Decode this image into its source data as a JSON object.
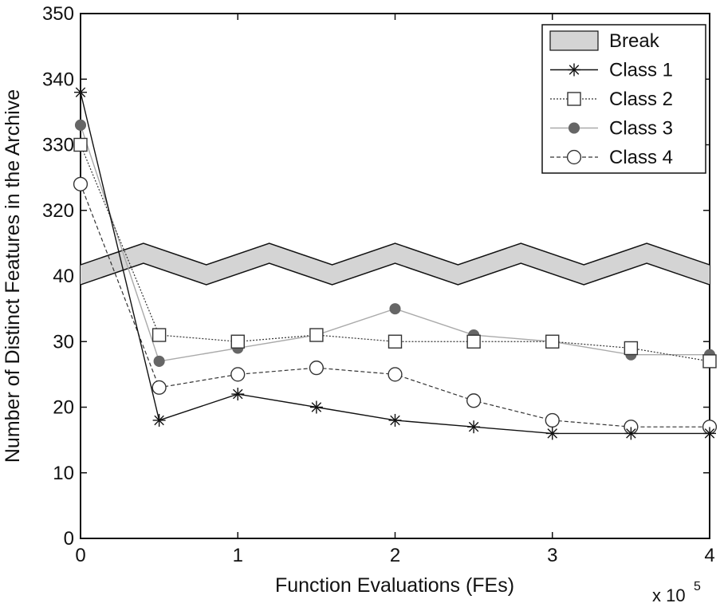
{
  "chart_data": {
    "type": "line",
    "xlabel": "Function Evaluations (FEs)",
    "ylabel": "Number of Distinct Features in the Archive",
    "x_scale_label": "x 10",
    "x_scale_exponent": "5",
    "xlim": [
      0,
      4
    ],
    "x_ticks": [
      "0",
      "1",
      "2",
      "3",
      "4"
    ],
    "y_axis": {
      "broken": true,
      "lower_range": [
        0,
        40
      ],
      "upper_range": [
        310,
        350
      ],
      "tick_labels": [
        "0",
        "10",
        "20",
        "30",
        "40",
        "320",
        "330",
        "340",
        "350"
      ]
    },
    "x": [
      0,
      0.5,
      1,
      1.5,
      2,
      2.5,
      3,
      3.5,
      4
    ],
    "series": [
      {
        "name": "Class 1",
        "marker": "asterisk",
        "line": "solid",
        "color": "#111111",
        "values": [
          338,
          18,
          22,
          20,
          18,
          17,
          16,
          16,
          16
        ]
      },
      {
        "name": "Class 2",
        "marker": "open-square",
        "line": "dotted",
        "color": "#333333",
        "values": [
          330,
          31,
          30,
          31,
          30,
          30,
          30,
          29,
          27
        ]
      },
      {
        "name": "Class 3",
        "marker": "filled-circle",
        "line": "solid-light",
        "color": "#999999",
        "values": [
          333,
          27,
          29,
          31,
          35,
          31,
          30,
          28,
          28
        ]
      },
      {
        "name": "Class 4",
        "marker": "open-circle",
        "line": "dashed",
        "color": "#333333",
        "values": [
          324,
          23,
          25,
          26,
          25,
          21,
          18,
          17,
          17
        ]
      }
    ],
    "legend": {
      "position": "top-right",
      "entries": [
        "Break",
        "Class 1",
        "Class 2",
        "Class 3",
        "Class 4"
      ]
    },
    "break_fill_color": "#d4d4d4",
    "grid": false
  }
}
